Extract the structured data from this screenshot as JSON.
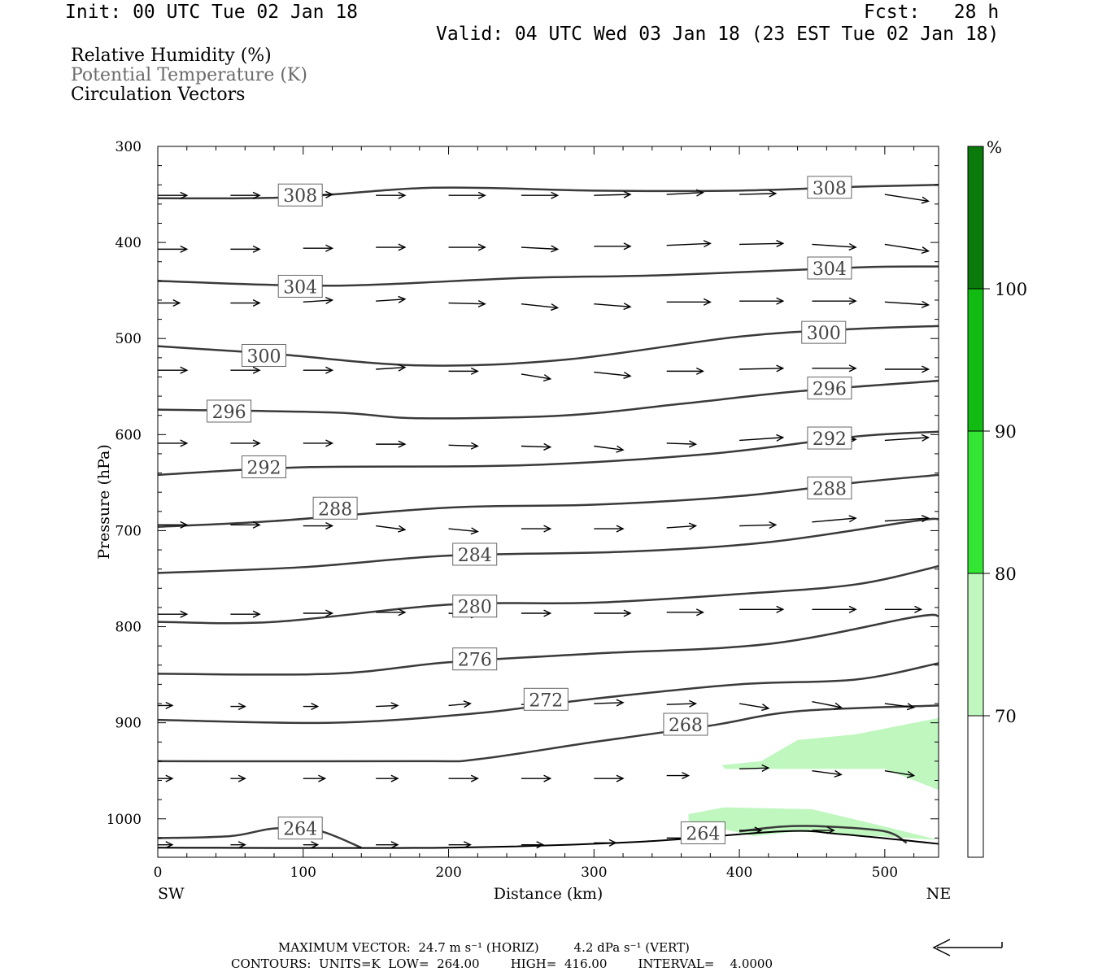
{
  "header": {
    "init": "Init: 00 UTC Tue 02 Jan 18",
    "fcst": "Fcst:   28 h",
    "valid": "Valid: 04 UTC Wed 03 Jan 18 (23 EST Tue 02 Jan 18)"
  },
  "legend": {
    "line1": "Relative Humidity (%)",
    "line2": "Potential Temperature (K)",
    "line3": "Circulation Vectors"
  },
  "footer": {
    "line1": "MAXIMUM VECTOR:  24.7 m s⁻¹ (HORIZ)         4.2 dPa s⁻¹ (VERT)",
    "line2": "CONTOURS:  UNITS=K  LOW=  264.00        HIGH=  416.00        INTERVAL=    4.0000"
  },
  "colors": {
    "contour": "#3a3a3a",
    "rh_70_80": "#bff7bf",
    "rh_80_90": "#33e633",
    "rh_90_100": "#11bb11",
    "rh_100_plus": "#0a7a0a",
    "rh_below_70": "#ffffff"
  },
  "chart_data": {
    "type": "contour",
    "xlabel": "Distance (km)",
    "ylabel": "Pressure (hPa)",
    "xlim": [
      0,
      537
    ],
    "ylim": [
      300,
      1040
    ],
    "y_inverted": true,
    "x_ticks": [
      0,
      100,
      200,
      300,
      400,
      500
    ],
    "y_ticks": [
      300,
      400,
      500,
      600,
      700,
      800,
      900,
      1000
    ],
    "x_end_labels": {
      "left": "SW",
      "right": "NE"
    },
    "colorbar": {
      "unit": "%",
      "levels": [
        70,
        80,
        90,
        100
      ]
    },
    "theta_contours": [
      {
        "value": 308,
        "points": [
          [
            0,
            354
          ],
          [
            90,
            353
          ],
          [
            190,
            343
          ],
          [
            300,
            346
          ],
          [
            400,
            346
          ],
          [
            480,
            342
          ],
          [
            537,
            340
          ]
        ],
        "labels": [
          [
            98,
            351
          ],
          [
            462,
            343
          ]
        ]
      },
      {
        "value": 304,
        "points": [
          [
            0,
            440
          ],
          [
            120,
            445
          ],
          [
            250,
            437
          ],
          [
            350,
            434
          ],
          [
            480,
            426
          ],
          [
            537,
            425
          ]
        ],
        "labels": [
          [
            98,
            446
          ],
          [
            462,
            427
          ]
        ]
      },
      {
        "value": 300,
        "points": [
          [
            0,
            508
          ],
          [
            80,
            516
          ],
          [
            180,
            528
          ],
          [
            280,
            522
          ],
          [
            400,
            498
          ],
          [
            480,
            490
          ],
          [
            537,
            487
          ]
        ],
        "labels": [
          [
            73,
            518
          ],
          [
            458,
            494
          ]
        ]
      },
      {
        "value": 296,
        "points": [
          [
            0,
            574
          ],
          [
            120,
            577
          ],
          [
            180,
            583
          ],
          [
            280,
            580
          ],
          [
            360,
            568
          ],
          [
            440,
            555
          ],
          [
            537,
            544
          ]
        ],
        "labels": [
          [
            49,
            576
          ],
          [
            462,
            552
          ]
        ]
      },
      {
        "value": 292,
        "points": [
          [
            0,
            642
          ],
          [
            100,
            634
          ],
          [
            250,
            632
          ],
          [
            380,
            620
          ],
          [
            480,
            602
          ],
          [
            537,
            597
          ]
        ],
        "labels": [
          [
            73,
            634
          ],
          [
            462,
            604
          ]
        ]
      },
      {
        "value": 288,
        "points": [
          [
            0,
            696
          ],
          [
            80,
            690
          ],
          [
            200,
            676
          ],
          [
            300,
            673
          ],
          [
            400,
            664
          ],
          [
            480,
            650
          ],
          [
            537,
            642
          ]
        ],
        "labels": [
          [
            122,
            677
          ],
          [
            462,
            656
          ]
        ]
      },
      {
        "value": 284,
        "points": [
          [
            0,
            744
          ],
          [
            100,
            738
          ],
          [
            200,
            726
          ],
          [
            320,
            722
          ],
          [
            420,
            712
          ],
          [
            520,
            690
          ],
          [
            537,
            688
          ]
        ],
        "labels": [
          [
            218,
            725
          ]
        ]
      },
      {
        "value": 280,
        "points": [
          [
            0,
            795
          ],
          [
            80,
            795
          ],
          [
            200,
            777
          ],
          [
            300,
            775
          ],
          [
            400,
            766
          ],
          [
            480,
            756
          ],
          [
            537,
            737
          ]
        ],
        "labels": [
          [
            218,
            779
          ]
        ]
      },
      {
        "value": 276,
        "points": [
          [
            0,
            849
          ],
          [
            120,
            849
          ],
          [
            200,
            837
          ],
          [
            300,
            828
          ],
          [
            420,
            818
          ],
          [
            520,
            790
          ],
          [
            537,
            789
          ]
        ],
        "labels": [
          [
            218,
            834
          ]
        ]
      },
      {
        "value": 272,
        "points": [
          [
            0,
            897
          ],
          [
            120,
            900
          ],
          [
            220,
            890
          ],
          [
            300,
            875
          ],
          [
            400,
            860
          ],
          [
            480,
            855
          ],
          [
            537,
            838
          ]
        ],
        "labels": [
          [
            267,
            876
          ]
        ]
      },
      {
        "value": 268,
        "points": [
          [
            0,
            940
          ],
          [
            180,
            940
          ],
          [
            220,
            938
          ],
          [
            300,
            920
          ],
          [
            380,
            903
          ],
          [
            440,
            888
          ],
          [
            537,
            882
          ]
        ],
        "labels": [
          [
            363,
            902
          ]
        ]
      },
      {
        "value": 264,
        "points": [
          [
            0,
            1020
          ],
          [
            50,
            1018
          ],
          [
            80,
            1010
          ],
          [
            110,
            1012
          ],
          [
            140,
            1030
          ]
        ],
        "labels": [
          [
            98,
            1010
          ]
        ]
      },
      {
        "value": 264,
        "points": [
          [
            400,
            1013
          ],
          [
            430,
            1008
          ],
          [
            460,
            1008
          ],
          [
            500,
            1013
          ],
          [
            515,
            1025
          ]
        ],
        "labels": [
          [
            375,
            1015
          ]
        ]
      }
    ],
    "surface_line": {
      "points": [
        [
          0,
          1030
        ],
        [
          200,
          1030
        ],
        [
          330,
          1024
        ],
        [
          430,
          1013
        ],
        [
          470,
          1016
        ],
        [
          537,
          1026
        ]
      ]
    },
    "rh_regions": [
      {
        "level": "70-80",
        "points": [
          [
            388,
            944
          ],
          [
            415,
            940
          ],
          [
            440,
            918
          ],
          [
            480,
            912
          ],
          [
            537,
            895
          ],
          [
            537,
            970
          ],
          [
            500,
            948
          ],
          [
            390,
            948
          ]
        ]
      },
      {
        "level": "70-80",
        "points": [
          [
            365,
            995
          ],
          [
            390,
            988
          ],
          [
            450,
            990
          ],
          [
            500,
            1008
          ],
          [
            537,
            1022
          ],
          [
            440,
            1013
          ],
          [
            410,
            1018
          ],
          [
            365,
            1002
          ]
        ]
      }
    ],
    "vectors": [
      [
        0,
        351,
        20,
        0
      ],
      [
        50,
        351,
        20,
        0
      ],
      [
        100,
        351,
        20,
        -1
      ],
      [
        150,
        351,
        20,
        0
      ],
      [
        200,
        351,
        25,
        0
      ],
      [
        250,
        351,
        25,
        0
      ],
      [
        300,
        351,
        25,
        -1
      ],
      [
        350,
        350,
        25,
        -2
      ],
      [
        400,
        350,
        25,
        -1
      ],
      [
        450,
        350,
        25,
        0
      ],
      [
        500,
        350,
        30,
        7
      ],
      [
        0,
        407,
        20,
        0
      ],
      [
        50,
        407,
        20,
        0
      ],
      [
        100,
        406,
        20,
        0
      ],
      [
        150,
        405,
        20,
        0
      ],
      [
        200,
        405,
        25,
        0
      ],
      [
        250,
        405,
        25,
        2
      ],
      [
        300,
        404,
        25,
        0
      ],
      [
        350,
        403,
        30,
        -2
      ],
      [
        400,
        402,
        30,
        -1
      ],
      [
        450,
        402,
        30,
        3
      ],
      [
        500,
        402,
        30,
        7
      ],
      [
        0,
        463,
        15,
        0
      ],
      [
        50,
        463,
        20,
        0
      ],
      [
        100,
        462,
        20,
        -2
      ],
      [
        150,
        461,
        20,
        -2
      ],
      [
        200,
        463,
        25,
        1
      ],
      [
        250,
        464,
        25,
        4
      ],
      [
        300,
        464,
        25,
        3
      ],
      [
        350,
        462,
        30,
        0
      ],
      [
        400,
        461,
        30,
        0
      ],
      [
        450,
        461,
        30,
        0
      ],
      [
        500,
        462,
        30,
        3
      ],
      [
        0,
        533,
        20,
        0
      ],
      [
        50,
        533,
        20,
        0
      ],
      [
        100,
        533,
        20,
        0
      ],
      [
        150,
        532,
        20,
        -2
      ],
      [
        200,
        534,
        20,
        0
      ],
      [
        250,
        537,
        20,
        5
      ],
      [
        300,
        535,
        25,
        4
      ],
      [
        350,
        534,
        25,
        0
      ],
      [
        400,
        532,
        30,
        -1
      ],
      [
        450,
        531,
        30,
        0
      ],
      [
        500,
        532,
        30,
        0
      ],
      [
        0,
        609,
        20,
        0
      ],
      [
        50,
        609,
        20,
        0
      ],
      [
        100,
        609,
        20,
        0
      ],
      [
        150,
        610,
        20,
        0
      ],
      [
        200,
        611,
        20,
        1
      ],
      [
        250,
        612,
        20,
        1
      ],
      [
        300,
        612,
        20,
        4
      ],
      [
        350,
        609,
        20,
        1
      ],
      [
        400,
        606,
        30,
        -3
      ],
      [
        450,
        607,
        30,
        -2
      ],
      [
        500,
        606,
        30,
        -3
      ],
      [
        0,
        694,
        20,
        0
      ],
      [
        50,
        694,
        20,
        0
      ],
      [
        100,
        695,
        20,
        0
      ],
      [
        150,
        695,
        20,
        4
      ],
      [
        200,
        698,
        20,
        3
      ],
      [
        250,
        698,
        20,
        0
      ],
      [
        300,
        698,
        20,
        0
      ],
      [
        350,
        697,
        20,
        -2
      ],
      [
        400,
        695,
        25,
        -1
      ],
      [
        450,
        691,
        30,
        -4
      ],
      [
        500,
        690,
        30,
        -3
      ],
      [
        0,
        787,
        20,
        0
      ],
      [
        50,
        787,
        20,
        0
      ],
      [
        100,
        786,
        20,
        0
      ],
      [
        150,
        785,
        20,
        0
      ],
      [
        200,
        786,
        20,
        2
      ],
      [
        250,
        786,
        20,
        0
      ],
      [
        300,
        786,
        25,
        0
      ],
      [
        350,
        785,
        25,
        0
      ],
      [
        400,
        782,
        30,
        0
      ],
      [
        450,
        782,
        30,
        0
      ],
      [
        500,
        782,
        25,
        0
      ],
      [
        0,
        882,
        10,
        0
      ],
      [
        50,
        883,
        10,
        0
      ],
      [
        100,
        883,
        10,
        0
      ],
      [
        150,
        883,
        15,
        -1
      ],
      [
        200,
        882,
        15,
        -2
      ],
      [
        250,
        881,
        20,
        0
      ],
      [
        300,
        880,
        20,
        -1
      ],
      [
        350,
        881,
        20,
        -1
      ],
      [
        400,
        880,
        20,
        5
      ],
      [
        450,
        878,
        20,
        6
      ],
      [
        500,
        880,
        20,
        4
      ],
      [
        0,
        958,
        10,
        0
      ],
      [
        50,
        958,
        10,
        0
      ],
      [
        100,
        958,
        15,
        0
      ],
      [
        150,
        958,
        15,
        0
      ],
      [
        200,
        958,
        20,
        0
      ],
      [
        250,
        958,
        20,
        0
      ],
      [
        300,
        958,
        20,
        0
      ],
      [
        350,
        955,
        15,
        0
      ],
      [
        400,
        948,
        20,
        -1
      ],
      [
        450,
        950,
        20,
        4
      ],
      [
        500,
        950,
        20,
        5
      ],
      [
        0,
        1027,
        10,
        0
      ],
      [
        50,
        1027,
        10,
        0
      ],
      [
        100,
        1027,
        10,
        0
      ],
      [
        150,
        1027,
        15,
        0
      ],
      [
        200,
        1027,
        15,
        0
      ],
      [
        250,
        1027,
        15,
        0
      ],
      [
        300,
        1025,
        15,
        0
      ],
      [
        350,
        1020,
        15,
        0
      ],
      [
        400,
        1012,
        15,
        0
      ],
      [
        450,
        1012,
        15,
        0
      ]
    ]
  }
}
